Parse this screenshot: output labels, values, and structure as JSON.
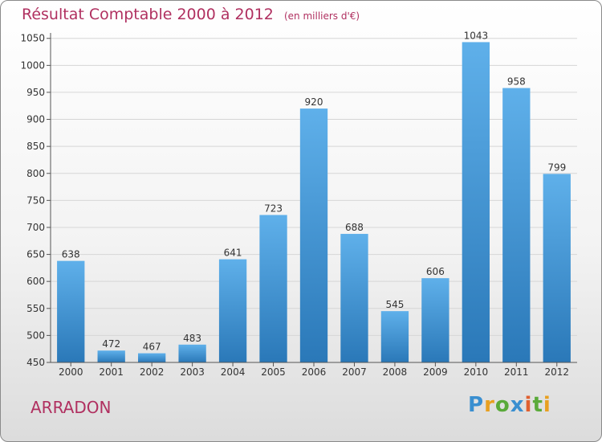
{
  "title": "Résultat Comptable 2000 à 2012",
  "subtitle": "(en milliers d'€)",
  "commune": "ARRADON",
  "logo": {
    "text": "Proxiti",
    "letters": [
      {
        "ch": "P",
        "color": "#3a8fd0"
      },
      {
        "ch": "r",
        "color": "#e8a020"
      },
      {
        "ch": "o",
        "color": "#5aaa3a"
      },
      {
        "ch": "x",
        "color": "#3a8fd0"
      },
      {
        "ch": "i",
        "color": "#e06030"
      },
      {
        "ch": "t",
        "color": "#5aaa3a"
      },
      {
        "ch": "i",
        "color": "#e8a020"
      }
    ]
  },
  "colors": {
    "bar_light": "#5fb0ea",
    "bar_dark": "#2a78b8",
    "accent": "#b03060"
  },
  "chart_data": {
    "type": "bar",
    "title": "Résultat Comptable 2000 à 2012",
    "subtitle": "(en milliers d'€)",
    "categories": [
      "2000",
      "2001",
      "2002",
      "2003",
      "2004",
      "2005",
      "2006",
      "2007",
      "2008",
      "2009",
      "2010",
      "2011",
      "2012"
    ],
    "values": [
      638,
      472,
      467,
      483,
      641,
      723,
      920,
      688,
      545,
      606,
      1043,
      958,
      799
    ],
    "yticks": [
      450,
      500,
      550,
      600,
      650,
      700,
      750,
      800,
      850,
      900,
      950,
      1000,
      1050
    ],
    "ylim": [
      450,
      1060
    ],
    "grid": true,
    "legend": "none"
  }
}
